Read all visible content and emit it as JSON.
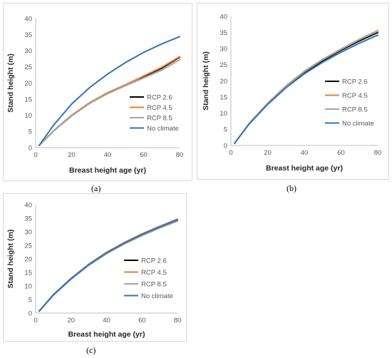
{
  "chart_data": [
    {
      "type": "line",
      "panel_label": "(a)",
      "xlabel": "Breast height age (yr)",
      "ylabel": "Stand height (m)",
      "xlim": [
        0,
        80
      ],
      "ylim": [
        0,
        40
      ],
      "xticks": [
        0,
        20,
        40,
        60,
        80
      ],
      "yticks": [
        0,
        5,
        10,
        15,
        20,
        25,
        30,
        35,
        40
      ],
      "grid": false,
      "legend_position": "right",
      "x": [
        2,
        10,
        20,
        30,
        40,
        50,
        60,
        70,
        80
      ],
      "series": [
        {
          "name": "RCP 2.6",
          "color": "#000000",
          "values": [
            0.7,
            5.2,
            10.0,
            13.9,
            17.0,
            19.5,
            22.0,
            24.6,
            28.0
          ]
        },
        {
          "name": "RCP 4.5",
          "color": "#ed7d31",
          "values": [
            0.7,
            5.2,
            10.0,
            13.9,
            17.0,
            19.5,
            22.2,
            24.9,
            28.2
          ]
        },
        {
          "name": "RCP 8.5",
          "color": "#a5a5a5",
          "values": [
            0.7,
            5.1,
            9.8,
            13.7,
            16.7,
            19.2,
            21.6,
            24.0,
            27.2
          ]
        },
        {
          "name": "No climate",
          "color": "#2e75b6",
          "values": [
            0.7,
            7.0,
            13.5,
            18.6,
            22.8,
            26.4,
            29.5,
            32.1,
            34.4
          ]
        }
      ]
    },
    {
      "type": "line",
      "panel_label": "(b)",
      "xlabel": "Breast height age (yr)",
      "ylabel": "Stand height (m)",
      "xlim": [
        0,
        80
      ],
      "ylim": [
        0,
        40
      ],
      "xticks": [
        0,
        20,
        40,
        60,
        80
      ],
      "yticks": [
        0,
        5,
        10,
        15,
        20,
        25,
        30,
        35,
        40
      ],
      "grid": false,
      "legend_position": "right",
      "x": [
        2,
        10,
        20,
        30,
        40,
        50,
        60,
        70,
        80
      ],
      "series": [
        {
          "name": "RCP 2.6",
          "color": "#000000",
          "values": [
            0.7,
            6.8,
            12.9,
            18.2,
            22.6,
            26.3,
            29.5,
            32.4,
            35.0
          ]
        },
        {
          "name": "RCP 4.5",
          "color": "#ed7d31",
          "values": [
            0.7,
            6.9,
            13.1,
            18.5,
            23.0,
            26.7,
            29.9,
            32.9,
            35.6
          ]
        },
        {
          "name": "RCP 8.5",
          "color": "#a5a5a5",
          "values": [
            0.7,
            6.9,
            13.0,
            18.4,
            22.9,
            26.6,
            29.8,
            32.8,
            35.4
          ]
        },
        {
          "name": "No climate",
          "color": "#2e75b6",
          "values": [
            0.7,
            6.7,
            12.7,
            17.9,
            22.2,
            25.8,
            28.9,
            31.7,
            34.2
          ]
        }
      ]
    },
    {
      "type": "line",
      "panel_label": "(c)",
      "xlabel": "Breast height age (yr)",
      "ylabel": "Stand height (m)",
      "xlim": [
        0,
        80
      ],
      "ylim": [
        0,
        40
      ],
      "xticks": [
        0,
        20,
        40,
        60,
        80
      ],
      "yticks": [
        0,
        5,
        10,
        15,
        20,
        25,
        30,
        35,
        40
      ],
      "grid": false,
      "legend_position": "right",
      "x": [
        2,
        10,
        20,
        30,
        40,
        50,
        60,
        70,
        80
      ],
      "series": [
        {
          "name": "RCP 2.6",
          "color": "#000000",
          "values": [
            0.7,
            6.8,
            12.8,
            18.0,
            22.4,
            26.0,
            29.2,
            32.0,
            34.6
          ]
        },
        {
          "name": "RCP 4.5",
          "color": "#ed7d31",
          "values": [
            0.7,
            6.8,
            12.8,
            18.0,
            22.4,
            26.0,
            29.2,
            32.0,
            34.5
          ]
        },
        {
          "name": "RCP 8.5",
          "color": "#a5a5a5",
          "values": [
            0.7,
            6.6,
            12.5,
            17.6,
            21.9,
            25.5,
            28.6,
            31.4,
            33.9
          ]
        },
        {
          "name": "No climate",
          "color": "#2e75b6",
          "values": [
            0.7,
            6.7,
            12.7,
            17.9,
            22.2,
            25.8,
            29.0,
            31.8,
            34.4
          ]
        }
      ]
    }
  ]
}
